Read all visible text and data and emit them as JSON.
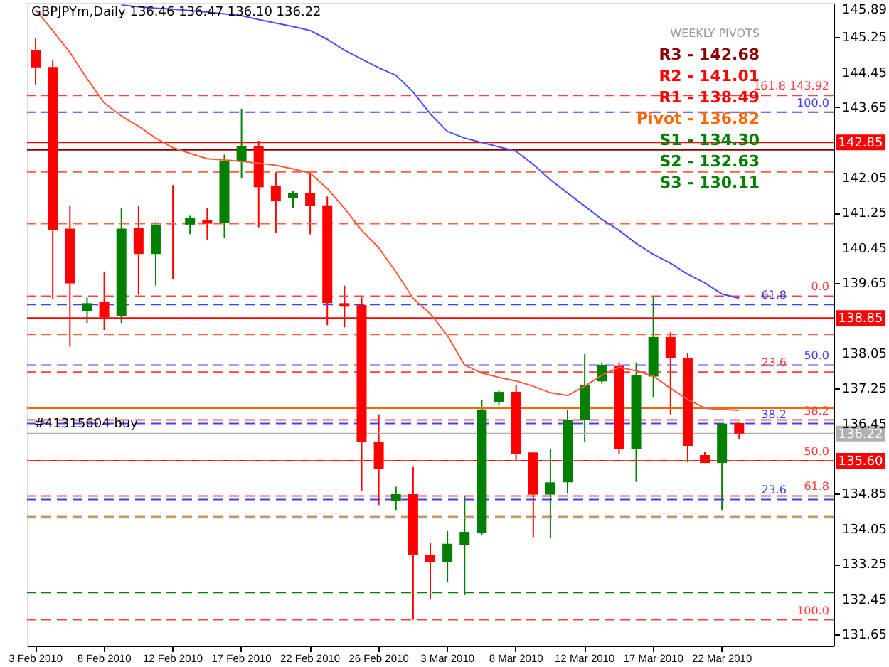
{
  "chart_data": {
    "type": "candlestick",
    "title": "GBPJPYm,Daily  136.46 136.47 136.10 136.22",
    "categories": [
      "3 Feb 2010",
      null,
      null,
      null,
      "8 Feb 2010",
      null,
      null,
      null,
      "12 Feb 2010",
      null,
      null,
      null,
      "17 Feb 2010",
      null,
      null,
      null,
      "22 Feb 2010",
      null,
      null,
      null,
      "26 Feb 2010",
      null,
      null,
      null,
      "3 Mar 2010",
      null,
      null,
      null,
      "8 Mar 2010",
      null,
      null,
      null,
      "12 Mar 2010",
      null,
      null,
      null,
      "17 Mar 2010",
      null,
      null,
      null,
      "22 Mar 2010",
      null,
      null,
      null,
      null,
      null,
      null
    ],
    "ohlc": [
      [
        144.95,
        145.23,
        144.17,
        144.56
      ],
      [
        144.57,
        144.72,
        139.28,
        140.85
      ],
      [
        140.89,
        141.4,
        138.2,
        139.64
      ],
      [
        139.01,
        139.32,
        138.74,
        139.19
      ],
      [
        139.22,
        139.91,
        138.58,
        138.87
      ],
      [
        138.9,
        141.35,
        138.74,
        140.89
      ],
      [
        140.9,
        141.4,
        139.38,
        140.31
      ],
      [
        140.31,
        141.04,
        139.59,
        140.98
      ],
      [
        140.98,
        141.88,
        139.73,
        140.96
      ],
      [
        140.98,
        141.18,
        140.76,
        141.13
      ],
      [
        141.08,
        141.35,
        140.64,
        141.0
      ],
      [
        141.01,
        142.57,
        140.68,
        142.42
      ],
      [
        142.42,
        143.62,
        142.04,
        142.77
      ],
      [
        142.77,
        142.89,
        140.92,
        141.83
      ],
      [
        141.87,
        142.17,
        140.8,
        141.51
      ],
      [
        141.59,
        141.74,
        141.35,
        141.69
      ],
      [
        141.69,
        142.17,
        140.76,
        141.4
      ],
      [
        141.42,
        141.62,
        138.69,
        139.19
      ],
      [
        139.19,
        139.59,
        138.64,
        139.11
      ],
      [
        139.15,
        139.32,
        134.91,
        136.03
      ],
      [
        136.03,
        136.66,
        134.59,
        135.42
      ],
      [
        134.69,
        135.01,
        134.48,
        134.84
      ],
      [
        134.84,
        135.46,
        131.98,
        133.45
      ],
      [
        133.45,
        133.73,
        132.46,
        133.29
      ],
      [
        133.29,
        134.0,
        132.83,
        133.71
      ],
      [
        133.69,
        134.81,
        132.54,
        133.98
      ],
      [
        133.95,
        136.98,
        133.9,
        136.77
      ],
      [
        136.93,
        137.2,
        136.88,
        137.17
      ],
      [
        137.17,
        137.33,
        135.6,
        135.76
      ],
      [
        135.79,
        135.8,
        133.86,
        134.83
      ],
      [
        134.83,
        135.87,
        133.84,
        135.11
      ],
      [
        135.11,
        136.77,
        134.85,
        136.54
      ],
      [
        136.54,
        138.03,
        136.03,
        137.33
      ],
      [
        137.41,
        137.84,
        137.36,
        137.78
      ],
      [
        137.76,
        137.84,
        135.76,
        135.87
      ],
      [
        135.87,
        137.84,
        135.12,
        137.55
      ],
      [
        137.52,
        139.35,
        137.04,
        138.42
      ],
      [
        138.42,
        138.53,
        136.66,
        137.94
      ],
      [
        137.94,
        138.05,
        135.57,
        135.94
      ],
      [
        135.73,
        135.8,
        135.55,
        135.55
      ],
      [
        135.55,
        136.45,
        134.48,
        136.45
      ],
      [
        136.46,
        136.47,
        136.1,
        136.22
      ],
      null,
      null,
      null,
      null,
      null
    ],
    "colors": [
      "#ff0000",
      "#ff0000",
      "#ff0000",
      "#008000",
      "#ff0000",
      "#008000",
      "#ff0000",
      "#008000",
      "#ff0000",
      "#008000",
      "#ff0000",
      "#008000",
      "#008000",
      "#ff0000",
      "#ff0000",
      "#008000",
      "#ff0000",
      "#ff0000",
      "#ff0000",
      "#ff0000",
      "#ff0000",
      "#008000",
      "#ff0000",
      "#ff0000",
      "#008000",
      "#008000",
      "#008000",
      "#008000",
      "#ff0000",
      "#ff0000",
      "#008000",
      "#008000",
      "#008000",
      "#008000",
      "#ff0000",
      "#008000",
      "#008000",
      "#ff0000",
      "#ff0000",
      "#ff0000",
      "#008000",
      "#ff0000",
      null,
      null,
      null,
      null,
      null
    ],
    "series": [
      {
        "type": "line",
        "color": "#ff5a3c",
        "values": [
          145.87,
          145.4,
          144.9,
          144.3,
          143.75,
          143.45,
          143.22,
          142.95,
          142.73,
          142.6,
          142.48,
          142.45,
          142.42,
          142.38,
          142.33,
          142.25,
          142.15,
          141.8,
          141.35,
          140.85,
          140.45,
          139.9,
          139.3,
          138.95,
          138.45,
          137.78,
          137.6,
          137.5,
          137.42,
          137.3,
          137.15,
          137.09,
          137.3,
          137.55,
          137.73,
          137.65,
          137.53,
          137.25,
          137.0,
          136.8,
          136.77,
          136.75,
          null,
          null,
          null,
          null,
          null
        ]
      },
      {
        "type": "line",
        "color": "#4d4dff",
        "values": [
          null,
          null,
          null,
          null,
          null,
          145.98,
          145.94,
          145.91,
          145.89,
          145.85,
          145.82,
          145.78,
          145.74,
          145.65,
          145.57,
          145.49,
          145.4,
          145.2,
          144.95,
          144.75,
          144.55,
          144.38,
          144.0,
          143.5,
          143.1,
          142.95,
          142.85,
          142.75,
          142.65,
          142.35,
          142.0,
          141.7,
          141.4,
          141.1,
          140.85,
          140.55,
          140.3,
          140.1,
          139.85,
          139.65,
          139.4,
          139.3,
          null,
          null,
          null,
          null,
          null
        ]
      }
    ],
    "ylim": [
      131.39,
      146.03
    ],
    "yticks": [
      131.65,
      132.45,
      133.25,
      134.05,
      134.85,
      136.45,
      137.25,
      138.05,
      139.65,
      140.45,
      141.25,
      142.05,
      143.65,
      144.45,
      145.25,
      145.89
    ],
    "grid": false,
    "ref_lines": [
      {
        "axis": "y",
        "value": 142.85,
        "label": "142.85",
        "color": "#ff0000",
        "line_style": "solid"
      },
      {
        "axis": "y",
        "value": 138.85,
        "label": "138.85",
        "color": "#ff0000",
        "line_style": "solid"
      },
      {
        "axis": "y",
        "value": 135.6,
        "label": "135.60",
        "color": "#ff0000",
        "line_style": "solid"
      },
      {
        "axis": "y",
        "value": 136.22,
        "label": "136.22",
        "color": "#b0b0b0",
        "line_style": "solid"
      },
      {
        "axis": "y",
        "value": 143.92,
        "color": "#ff4040",
        "line_style": "dashed"
      },
      {
        "axis": "y",
        "value": 143.54,
        "color": "#4040ff",
        "line_style": "dashed"
      },
      {
        "axis": "y",
        "value": 139.35,
        "color": "#ff4040",
        "line_style": "dashed"
      },
      {
        "axis": "y",
        "value": 139.16,
        "color": "#4040ff",
        "line_style": "dashed"
      },
      {
        "axis": "y",
        "value": 137.78,
        "color": "#4040ff",
        "line_style": "dashed"
      },
      {
        "axis": "y",
        "value": 137.62,
        "color": "#ff4040",
        "line_style": "dashed"
      },
      {
        "axis": "y",
        "value": 136.53,
        "color": "#ff4040",
        "line_style": "dashed"
      },
      {
        "axis": "y",
        "value": 136.45,
        "color": "#4040ff",
        "line_style": "dashed"
      },
      {
        "axis": "y",
        "value": 135.6,
        "color": "#ff4040",
        "line_style": "dashed"
      },
      {
        "axis": "y",
        "value": 134.8,
        "color": "#ff4040",
        "line_style": "dashed"
      },
      {
        "axis": "y",
        "value": 134.72,
        "color": "#4040ff",
        "line_style": "dashed"
      },
      {
        "axis": "y",
        "value": 131.98,
        "color": "#ff4040",
        "line_style": "dashed"
      },
      {
        "axis": "y",
        "value": 134.34,
        "color": "#ff4000",
        "line_style": "dashed"
      },
      {
        "axis": "y",
        "value": 142.68,
        "color": "#8b0000",
        "line_style": "solid"
      },
      {
        "axis": "y",
        "value": 142.18,
        "color": "#ff6040",
        "line_style": "dashed"
      },
      {
        "axis": "y",
        "value": 141.0,
        "color": "#ff6040",
        "line_style": "dashed"
      },
      {
        "axis": "y",
        "value": 138.48,
        "color": "#ff6040",
        "line_style": "dashed"
      },
      {
        "axis": "y",
        "value": 136.8,
        "color": "#ff6600",
        "line_style": "solid"
      },
      {
        "axis": "y",
        "value": 134.3,
        "color": "#66b266",
        "line_style": "dashed"
      },
      {
        "axis": "y",
        "value": 132.6,
        "color": "#008000",
        "line_style": "dashed"
      }
    ],
    "annotations": [
      "WEEKLY PIVOTS",
      "R3 - 142.68",
      "R2 - 141.01",
      "R1 - 138.49",
      "Pivot - 136.82",
      "S1 - 134.30",
      "S2 - 132.63",
      "S3 - 130.11",
      {
        "text": "#41315604 buy",
        "y": 136.3
      },
      {
        "text": "161.8  143.92",
        "y": 143.92
      },
      {
        "text": "100.0",
        "y": 143.54
      },
      {
        "text": "0.0",
        "y": 139.35
      },
      {
        "text": "61.8",
        "y": 139.16
      },
      {
        "text": "50.0",
        "y": 137.78
      },
      {
        "text": "23.6",
        "y": 137.62
      },
      {
        "text": "38.2",
        "y": 136.53
      },
      {
        "text": "38.2",
        "y": 136.45
      },
      {
        "text": "50.0",
        "y": 135.6
      },
      {
        "text": "61.8",
        "y": 134.8
      },
      {
        "text": "23.6",
        "y": 134.72
      },
      {
        "text": "100.0",
        "y": 131.98
      }
    ]
  }
}
